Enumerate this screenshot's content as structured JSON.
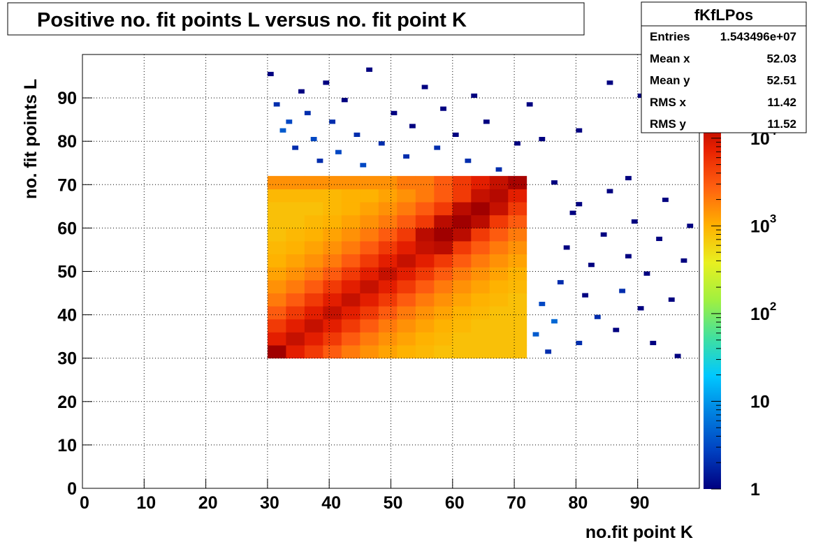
{
  "chart_data": {
    "type": "heatmap",
    "title": "Positive no. fit points L versus no. fit point K",
    "xlabel": "no.fit point K",
    "ylabel": "no. fit points  L",
    "xlim": [
      0,
      100
    ],
    "ylim": [
      0,
      100
    ],
    "xticks": [
      0,
      10,
      20,
      30,
      40,
      50,
      60,
      70,
      80,
      90
    ],
    "yticks": [
      0,
      10,
      20,
      30,
      40,
      50,
      60,
      70,
      80,
      90
    ],
    "grid": true,
    "zlim": [
      1,
      20000
    ],
    "zlog": true,
    "zticks": [
      {
        "value": 1,
        "label": "1"
      },
      {
        "value": 10,
        "label": "10"
      },
      {
        "value": 100,
        "label": "10",
        "exponent": "2"
      },
      {
        "value": 1000,
        "label": "10",
        "exponent": "3"
      },
      {
        "value": 10000,
        "label": "10",
        "exponent": "4"
      }
    ],
    "palette": [
      "#000080",
      "#0040c0",
      "#0080e0",
      "#00c8ff",
      "#40e0a0",
      "#a0f040",
      "#e8f020",
      "#ffb000",
      "#ff6010",
      "#e82000",
      "#a00000"
    ],
    "xbins": [
      30,
      33,
      36,
      39,
      42,
      45,
      48,
      51,
      54,
      57,
      60,
      63,
      66,
      69,
      72
    ],
    "ybins": [
      30,
      33,
      36,
      39,
      42,
      45,
      48,
      51,
      54,
      57,
      60,
      63,
      66,
      69,
      72
    ],
    "z": [
      [
        20000,
        8000,
        5000,
        3000,
        2000,
        1500,
        1200,
        1000,
        900,
        800,
        800,
        800,
        800,
        800
      ],
      [
        8000,
        12000,
        8000,
        5000,
        3000,
        2000,
        1500,
        1200,
        1000,
        900,
        800,
        800,
        800,
        800
      ],
      [
        5000,
        8000,
        12000,
        8000,
        5000,
        3000,
        2000,
        1500,
        1200,
        1000,
        900,
        800,
        800,
        800
      ],
      [
        3000,
        5000,
        8000,
        12000,
        8000,
        5000,
        3000,
        2000,
        1500,
        1200,
        1000,
        900,
        800,
        800
      ],
      [
        2000,
        3000,
        5000,
        8000,
        12000,
        8000,
        5000,
        3000,
        2000,
        1500,
        1200,
        1000,
        900,
        800
      ],
      [
        1500,
        2000,
        3000,
        5000,
        8000,
        12000,
        8000,
        5000,
        3000,
        2000,
        1500,
        1200,
        1000,
        900
      ],
      [
        1200,
        1500,
        2000,
        3000,
        5000,
        8000,
        12000,
        8000,
        5000,
        3000,
        2000,
        1500,
        1200,
        1000
      ],
      [
        1000,
        1200,
        1500,
        2000,
        3000,
        5000,
        8000,
        12000,
        8000,
        5000,
        3000,
        2000,
        1500,
        1200
      ],
      [
        900,
        1000,
        1200,
        1500,
        2000,
        3000,
        5000,
        8000,
        12000,
        14000,
        5000,
        3000,
        2000,
        1500
      ],
      [
        800,
        900,
        1000,
        1200,
        1500,
        2000,
        3000,
        5000,
        14000,
        20000,
        14000,
        5000,
        3000,
        2000
      ],
      [
        800,
        800,
        900,
        1000,
        1200,
        1500,
        2000,
        3000,
        5000,
        14000,
        20000,
        14000,
        5000,
        3000
      ],
      [
        800,
        800,
        800,
        900,
        1000,
        1200,
        1500,
        2000,
        3000,
        5000,
        14000,
        20000,
        12000,
        5000
      ],
      [
        900,
        900,
        900,
        900,
        1000,
        1000,
        1200,
        1500,
        2000,
        3000,
        5000,
        12000,
        15000,
        8000
      ],
      [
        1500,
        1500,
        1500,
        1500,
        1500,
        1500,
        1500,
        2000,
        2000,
        3000,
        5000,
        8000,
        12000,
        18000
      ]
    ],
    "sparse": {
      "x": [
        30,
        31,
        32,
        33,
        34,
        35,
        36,
        37,
        38,
        39,
        40,
        41,
        42,
        44,
        45,
        46,
        48,
        50,
        52,
        53,
        55,
        57,
        58,
        60,
        62,
        63,
        65,
        67,
        70,
        72,
        74,
        80,
        85,
        90,
        73,
        74,
        75,
        76,
        77,
        78,
        79,
        80,
        81,
        82,
        83,
        84,
        85,
        86,
        87,
        88,
        89,
        90,
        91,
        92,
        93,
        94,
        95,
        96,
        97,
        98,
        76,
        80,
        88
      ],
      "y": [
        95,
        88,
        82,
        84,
        78,
        91,
        86,
        80,
        75,
        93,
        84,
        77,
        89,
        81,
        74,
        96,
        79,
        86,
        76,
        83,
        92,
        78,
        87,
        81,
        75,
        90,
        84,
        73,
        79,
        88,
        80,
        82,
        93,
        90,
        35,
        42,
        31,
        38,
        47,
        55,
        63,
        33,
        44,
        51,
        39,
        58,
        68,
        36,
        45,
        53,
        61,
        41,
        49,
        33,
        57,
        66,
        43,
        30,
        52,
        60,
        70,
        65,
        71
      ],
      "values": [
        1,
        2,
        4,
        3,
        2,
        1,
        2,
        3,
        2,
        1,
        2,
        3,
        1,
        2,
        3,
        1,
        2,
        1,
        2,
        1,
        1,
        2,
        1,
        1,
        2,
        1,
        1,
        2,
        1,
        1,
        1,
        1,
        1,
        1,
        4,
        3,
        2,
        5,
        2,
        1,
        1,
        2,
        1,
        1,
        2,
        1,
        1,
        1,
        2,
        1,
        1,
        1,
        1,
        1,
        1,
        1,
        1,
        1,
        1,
        1,
        1,
        1,
        1
      ]
    },
    "stats": {
      "title": "fKfLPos",
      "rows": [
        [
          "Entries",
          "1.543496e+07"
        ],
        [
          "Mean x",
          "52.03"
        ],
        [
          "Mean y",
          "52.51"
        ],
        [
          "RMS x",
          "11.42"
        ],
        [
          "RMS y",
          "11.52"
        ]
      ]
    }
  }
}
